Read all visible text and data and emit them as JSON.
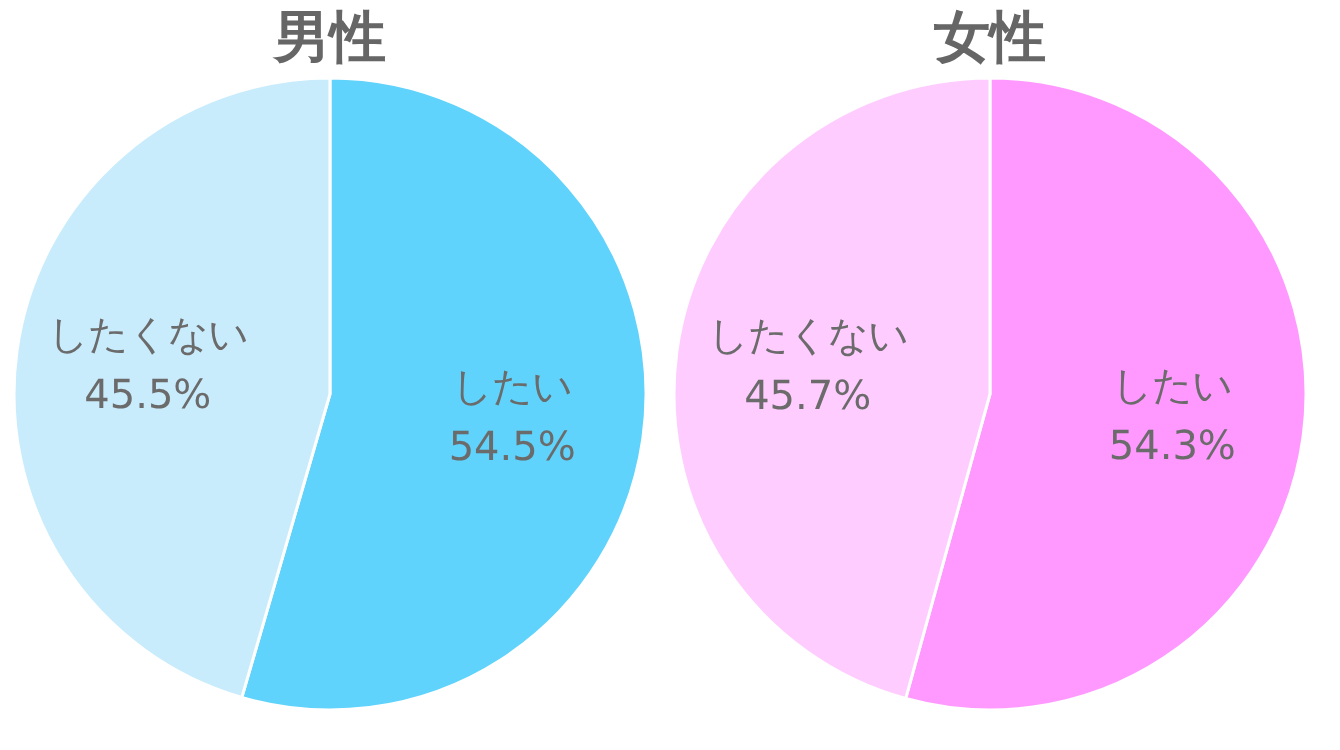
{
  "chart_data": [
    {
      "type": "pie",
      "title": "男性",
      "categories": [
        "したい",
        "したくない"
      ],
      "values": [
        54.5,
        45.5
      ],
      "colors": [
        "#5fd3fb",
        "#c9ecfd"
      ],
      "value_labels": [
        "54.5%",
        "45.5%"
      ]
    },
    {
      "type": "pie",
      "title": "女性",
      "categories": [
        "したい",
        "したくない"
      ],
      "values": [
        54.3,
        45.7
      ],
      "colors": [
        "#ff99ff",
        "#ffccff"
      ],
      "value_labels": [
        "54.3%",
        "45.7%"
      ]
    }
  ]
}
